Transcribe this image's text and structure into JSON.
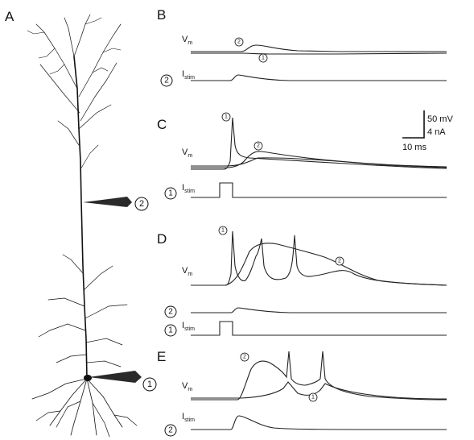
{
  "panels": {
    "A": "A",
    "B": "B",
    "C": "C",
    "D": "D",
    "E": "E"
  },
  "labels": {
    "vm_main": "V",
    "vm_sub": "m",
    "istim_main": "I",
    "istim_sub": "stim"
  },
  "markers": {
    "one": "1",
    "two": "2"
  },
  "scale_bar": {
    "voltage": "50 mV",
    "current": "4 nA",
    "time": "10 ms"
  },
  "colors": {
    "ink": "#111111",
    "background": "#ffffff",
    "electrode": "#2a2a2a"
  },
  "icons": {
    "neuron": "pyramidal-neuron-drawing",
    "electrode": "recording-electrode-wedge",
    "marker": "circled-number"
  }
}
